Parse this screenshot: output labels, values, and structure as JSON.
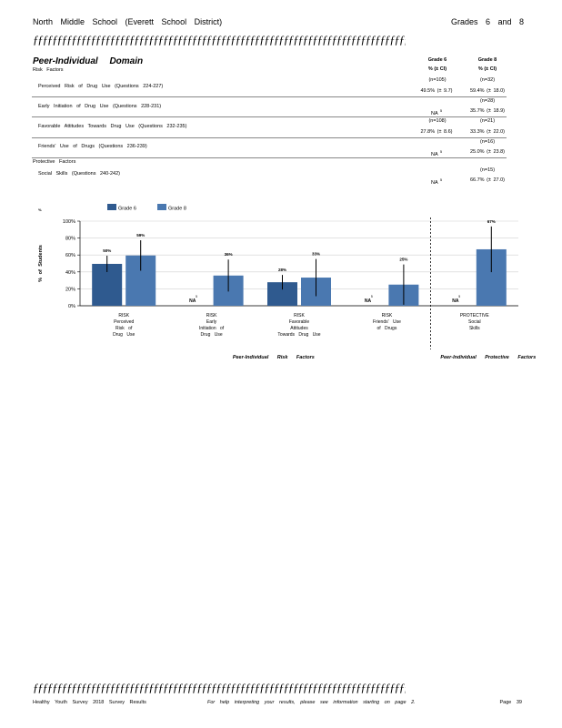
{
  "header": {
    "title": "North Middle School (Everett School District)",
    "grades": "Grades 6 and 8"
  },
  "rule_text": "ƒƒƒƒƒƒƒƒƒƒƒƒƒƒƒƒƒƒƒƒƒƒƒƒƒƒƒƒƒƒƒƒƒƒƒƒƒƒƒƒƒƒƒƒƒƒƒƒƒƒƒƒƒƒƒƒƒƒƒƒƒƒƒƒƒƒƒƒƒƒƒƒƒƒƒƒƒƒ",
  "domain_title": "Peer-Individual Domain",
  "risk_label": "Risk Factors",
  "protective_label": "Protective Factors",
  "columns": [
    {
      "grade": "Grade 6",
      "sub": "% (± CI)"
    },
    {
      "grade": "Grade 8",
      "sub": "% (± CI)"
    }
  ],
  "rows": [
    {
      "label": "Perceived Risk of Drug Use (Questions 224-227)",
      "g6_n": "(n=105)",
      "g6_val": "49.5% (± 9.7)",
      "g8_n": "(n=32)",
      "g8_val": "59.4% (± 18.0)"
    },
    {
      "label": "Early Initiation of Drug Use (Questions 228-231)",
      "g6_n": "",
      "g6_val": "NA",
      "g8_n": "(n=28)",
      "g8_val": "35.7% (± 18.9)"
    },
    {
      "label": "Favorable Attitudes Towards Drug Use (Questions 232-235)",
      "g6_n": "(n=108)",
      "g6_val": "27.8% (± 8.6)",
      "g8_n": "(n=21)",
      "g8_val": "33.3% (± 22.0)"
    },
    {
      "label": "Friends' Use of Drugs (Questions 236-239)",
      "g6_n": "",
      "g6_val": "NA",
      "g8_n": "(n=16)",
      "g8_val": "25.0% (± 23.8)"
    },
    {
      "label": "Social Skills (Questions 240-242)",
      "g6_n": "",
      "g6_val": "NA",
      "g8_n": "(n=15)",
      "g8_val": "66.7% (± 27.0)"
    }
  ],
  "footnote_mark": "5",
  "chart_data": {
    "type": "bar",
    "legend": [
      "Grade 6",
      "Grade 8"
    ],
    "ylabel": "% of Students",
    "yticks": [
      "0%",
      "20%",
      "40%",
      "60%",
      "80%",
      "100%"
    ],
    "ylim": [
      0,
      100
    ],
    "colors": {
      "grade6": "#2f5a8f",
      "grade8": "#4a78b0"
    },
    "categories": [
      {
        "lines": [
          "RISK",
          "Perceived",
          "Risk of",
          "Drug Use"
        ]
      },
      {
        "lines": [
          "RISK",
          "Early",
          "Initiation of",
          "Drug Use"
        ]
      },
      {
        "lines": [
          "RISK",
          "Favorable",
          "Attitudes",
          "Towards Drug Use"
        ]
      },
      {
        "lines": [
          "RISK",
          "Friends' Use",
          "of Drugs"
        ]
      },
      {
        "lines": [
          "PROTECTIVE",
          "Social",
          "Skills"
        ]
      }
    ],
    "series": [
      {
        "name": "Grade 6",
        "values": [
          49.5,
          null,
          27.8,
          null,
          null
        ],
        "ci": [
          9.7,
          null,
          8.6,
          null,
          null
        ],
        "labels": [
          "50%",
          "NA",
          "28%",
          "NA",
          "NA"
        ]
      },
      {
        "name": "Grade 8",
        "values": [
          59.4,
          35.7,
          33.3,
          25.0,
          66.7
        ],
        "ci": [
          18.0,
          18.9,
          22.0,
          23.8,
          27.0
        ],
        "labels": [
          "59%",
          "36%",
          "33%",
          "25%",
          "67%"
        ]
      }
    ],
    "group_labels": [
      "Peer-Individual Risk Factors",
      "Peer-Individual Protective Factors"
    ]
  },
  "footer": {
    "left": "Healthy Youth Survey 2018 Survey Results",
    "middle": "For help interpreting your results, please see information starting on page 2.",
    "right": "Page 39"
  }
}
